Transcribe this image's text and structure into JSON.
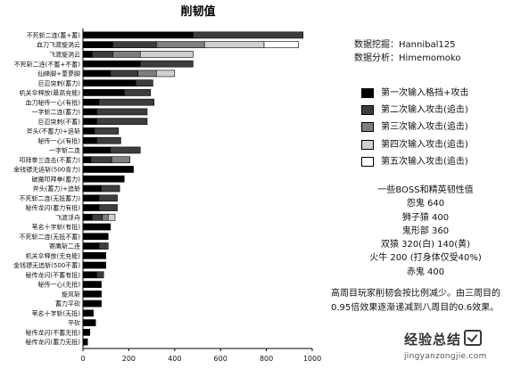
{
  "chart_data": {
    "type": "bar",
    "orientation": "horizontal",
    "stacked": true,
    "title": "削韧值",
    "xlim": [
      0,
      1000
    ],
    "xticks": [
      0,
      200,
      400,
      600,
      800,
      1000
    ],
    "grid": false,
    "legend_position": "right",
    "categories": [
      "不死斩二连(蓄+蓄)",
      "血刀飞渡旋涡云",
      "飞渡旋涡云",
      "不死斩二连(不蓄+不蓄)",
      "仙峰脚+葦夢脚",
      "巨忍突刺(蓄力)",
      "机关伞释放(最高充能)",
      "血刀秘传一心(有抵)",
      "一字斩二连(蓄力)",
      "巨忍突刺(不蓄)",
      "斧头(不蓄力)+追斩",
      "秘传一心(有抵)",
      "一字斩二连",
      "叩拜拳三连击(不蓄力)",
      "金钱镖无追斩(500青力)",
      "破魔叩拜拳(蓄力)",
      "斧头(蓄力)+追斩",
      "不死斩二连(无抵蓄力)",
      "秘传龙闪(蓄力有抵)",
      "飞渡浮舟",
      "苇名十字斩(有抵)",
      "不死斩二连(无抵不蓄)",
      "寄鹰斩二连",
      "机关伞释放(无充能)",
      "金钱镖无追斩(500不蓄)",
      "秘传龙闪(不蓄有抵)",
      "秘传一心(无抵)",
      "旋风斩",
      "蓄力平砍",
      "苇名十字斩(无抵)",
      "平砍",
      "秘传龙闪(不蓄无抵)",
      "秘传龙闪(蓄力无抵)"
    ],
    "series": [
      {
        "name": "第一次输入格挡+攻击",
        "values": [
          480,
          130,
          40,
          250,
          120,
          230,
          180,
          70,
          60,
          60,
          50,
          60,
          120,
          35,
          220,
          180,
          80,
          70,
          70,
          40,
          120,
          110,
          70,
          100,
          100,
          60,
          80,
          80,
          80,
          45,
          55,
          30,
          20
        ]
      },
      {
        "name": "第二次输入攻击(追击)",
        "values": [
          480,
          190,
          90,
          230,
          120,
          75,
          115,
          240,
          220,
          220,
          105,
          105,
          130,
          90,
          0,
          0,
          80,
          80,
          80,
          45,
          0,
          0,
          40,
          0,
          0,
          30,
          0,
          0,
          0,
          0,
          0,
          0,
          0
        ]
      },
      {
        "name": "第三次输入攻击(追击)",
        "values": [
          0,
          210,
          120,
          0,
          80,
          0,
          0,
          0,
          0,
          0,
          0,
          0,
          0,
          80,
          0,
          0,
          0,
          0,
          0,
          25,
          0,
          0,
          0,
          0,
          0,
          0,
          0,
          0,
          0,
          0,
          0,
          0,
          0
        ]
      },
      {
        "name": "第四次输入攻击(追击)",
        "values": [
          0,
          260,
          230,
          0,
          80,
          0,
          0,
          0,
          0,
          0,
          0,
          0,
          0,
          0,
          0,
          0,
          0,
          0,
          0,
          30,
          0,
          0,
          0,
          0,
          0,
          0,
          0,
          0,
          0,
          0,
          0,
          0,
          0
        ]
      },
      {
        "name": "第五次输入攻击(追击)",
        "values": [
          0,
          150,
          0,
          0,
          0,
          0,
          0,
          0,
          0,
          0,
          0,
          0,
          0,
          0,
          0,
          0,
          0,
          0,
          0,
          0,
          0,
          0,
          0,
          0,
          0,
          0,
          0,
          0,
          0,
          0,
          0,
          0,
          0
        ]
      }
    ],
    "colors": [
      "#000000",
      "#3d3d3d",
      "#7f7f7f",
      "#d0d0d0",
      "#ffffff"
    ]
  },
  "credits": {
    "line1": "数据挖掘：Hannibal125",
    "line2": "数据分析：Himemomoko"
  },
  "toughness": {
    "title": "一些BOSS和精英韧性值",
    "lines": [
      "怨鬼 640",
      "狮子猿 400",
      "鬼形部 360",
      "双猿 320(白) 140(黄)",
      "火牛 200 (打身体仅受40%)",
      "赤鬼 400"
    ]
  },
  "note": "高周目玩家削韧会按比例减少。由三周目的0.95倍效果逐渐递减到八周目的0.6效果。",
  "watermark": {
    "main": "经验总结",
    "sub": "jingyanzongjie.com"
  }
}
